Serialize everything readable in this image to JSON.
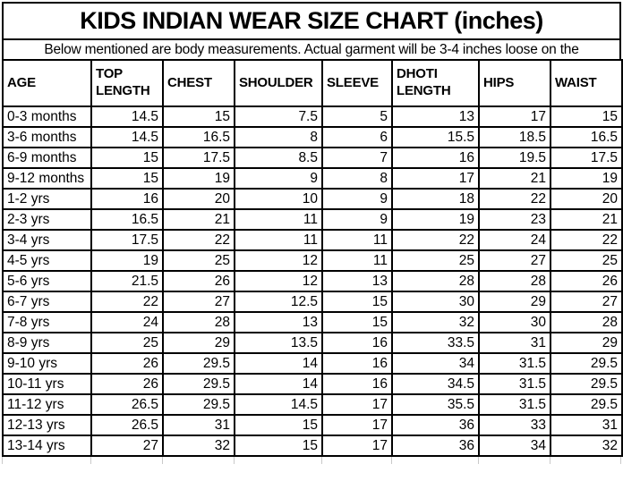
{
  "title": "KIDS INDIAN WEAR SIZE CHART (inches)",
  "subtitle": "Below mentioned are body measurements. Actual garment will be 3-4 inches loose on the",
  "colors": {
    "text": "#000000",
    "border": "#000000",
    "background": "#ffffff",
    "faint_gridline": "#c9c9c9"
  },
  "table": {
    "columns": [
      "AGE",
      "TOP LENGTH",
      "CHEST",
      "SHOULDER",
      "SLEEVE",
      "DHOTI LENGTH",
      "HIPS",
      "WAIST"
    ],
    "rows": [
      [
        "0-3 months",
        "14.5",
        "15",
        "7.5",
        "5",
        "13",
        "17",
        "15"
      ],
      [
        "3-6 months",
        "14.5",
        "16.5",
        "8",
        "6",
        "15.5",
        "18.5",
        "16.5"
      ],
      [
        "6-9 months",
        "15",
        "17.5",
        "8.5",
        "7",
        "16",
        "19.5",
        "17.5"
      ],
      [
        "9-12 months",
        "15",
        "19",
        "9",
        "8",
        "17",
        "21",
        "19"
      ],
      [
        "1-2 yrs",
        "16",
        "20",
        "10",
        "9",
        "18",
        "22",
        "20"
      ],
      [
        "2-3 yrs",
        "16.5",
        "21",
        "11",
        "9",
        "19",
        "23",
        "21"
      ],
      [
        "3-4 yrs",
        "17.5",
        "22",
        "11",
        "11",
        "22",
        "24",
        "22"
      ],
      [
        "4-5 yrs",
        "19",
        "25",
        "12",
        "11",
        "25",
        "27",
        "25"
      ],
      [
        "5-6 yrs",
        "21.5",
        "26",
        "12",
        "13",
        "28",
        "28",
        "26"
      ],
      [
        "6-7 yrs",
        "22",
        "27",
        "12.5",
        "15",
        "30",
        "29",
        "27"
      ],
      [
        "7-8 yrs",
        "24",
        "28",
        "13",
        "15",
        "32",
        "30",
        "28"
      ],
      [
        "8-9 yrs",
        "25",
        "29",
        "13.5",
        "16",
        "33.5",
        "31",
        "29"
      ],
      [
        "9-10 yrs",
        "26",
        "29.5",
        "14",
        "16",
        "34",
        "31.5",
        "29.5"
      ],
      [
        "10-11 yrs",
        "26",
        "29.5",
        "14",
        "16",
        "34.5",
        "31.5",
        "29.5"
      ],
      [
        "11-12 yrs",
        "26.5",
        "29.5",
        "14.5",
        "17",
        "35.5",
        "31.5",
        "29.5"
      ],
      [
        "12-13 yrs",
        "26.5",
        "31",
        "15",
        "17",
        "36",
        "33",
        "31"
      ],
      [
        "13-14 yrs",
        "27",
        "32",
        "15",
        "17",
        "36",
        "34",
        "32"
      ]
    ]
  },
  "chart_data": {
    "type": "table",
    "title": "KIDS INDIAN WEAR SIZE CHART (inches)",
    "columns": [
      "AGE",
      "TOP LENGTH",
      "CHEST",
      "SHOULDER",
      "SLEEVE",
      "DHOTI LENGTH",
      "HIPS",
      "WAIST"
    ],
    "rows": [
      [
        "0-3 months",
        14.5,
        15,
        7.5,
        5,
        13,
        17,
        15
      ],
      [
        "3-6 months",
        14.5,
        16.5,
        8,
        6,
        15.5,
        18.5,
        16.5
      ],
      [
        "6-9 months",
        15,
        17.5,
        8.5,
        7,
        16,
        19.5,
        17.5
      ],
      [
        "9-12 months",
        15,
        19,
        9,
        8,
        17,
        21,
        19
      ],
      [
        "1-2 yrs",
        16,
        20,
        10,
        9,
        18,
        22,
        20
      ],
      [
        "2-3 yrs",
        16.5,
        21,
        11,
        9,
        19,
        23,
        21
      ],
      [
        "3-4 yrs",
        17.5,
        22,
        11,
        11,
        22,
        24,
        22
      ],
      [
        "4-5 yrs",
        19,
        25,
        12,
        11,
        25,
        27,
        25
      ],
      [
        "5-6 yrs",
        21.5,
        26,
        12,
        13,
        28,
        28,
        26
      ],
      [
        "6-7 yrs",
        22,
        27,
        12.5,
        15,
        30,
        29,
        27
      ],
      [
        "7-8 yrs",
        24,
        28,
        13,
        15,
        32,
        30,
        28
      ],
      [
        "8-9 yrs",
        25,
        29,
        13.5,
        16,
        33.5,
        31,
        29
      ],
      [
        "9-10 yrs",
        26,
        29.5,
        14,
        16,
        34,
        31.5,
        29.5
      ],
      [
        "10-11 yrs",
        26,
        29.5,
        14,
        16,
        34.5,
        31.5,
        29.5
      ],
      [
        "11-12 yrs",
        26.5,
        29.5,
        14.5,
        17,
        35.5,
        31.5,
        29.5
      ],
      [
        "12-13 yrs",
        26.5,
        31,
        15,
        17,
        36,
        33,
        31
      ],
      [
        "13-14 yrs",
        27,
        32,
        15,
        17,
        36,
        34,
        32
      ]
    ]
  }
}
